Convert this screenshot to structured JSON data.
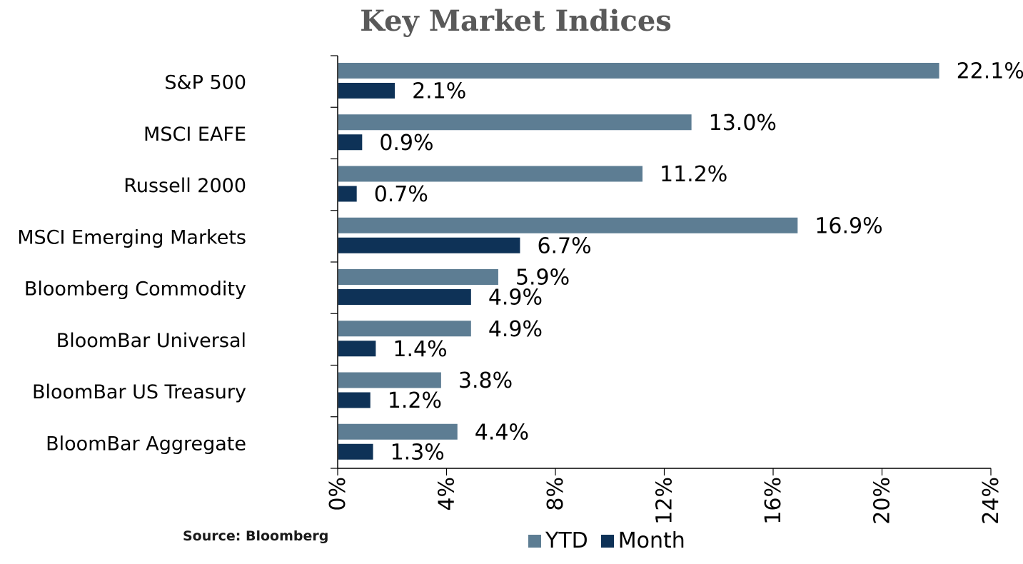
{
  "chart_data": {
    "type": "bar",
    "orientation": "horizontal",
    "title": "Key Market Indices",
    "categories": [
      "S&P 500",
      "MSCI EAFE",
      "Russell 2000",
      "MSCI Emerging Markets",
      "Bloomberg Commodity",
      "BloomBar Universal",
      "BloomBar US Treasury",
      "BloomBar Aggregate"
    ],
    "series": [
      {
        "name": "YTD",
        "color": "#5d7d93",
        "values": [
          22.1,
          13.0,
          11.2,
          16.9,
          5.9,
          4.9,
          3.8,
          4.4
        ],
        "labels": [
          "22.1%",
          "13.0%",
          "11.2%",
          "16.9%",
          "5.9%",
          "4.9%",
          "3.8%",
          "4.4%"
        ]
      },
      {
        "name": "Month",
        "color": "#0e3257",
        "values": [
          2.1,
          0.9,
          0.7,
          6.7,
          4.9,
          1.4,
          1.2,
          1.3
        ],
        "labels": [
          "2.1%",
          "0.9%",
          "0.7%",
          "6.7%",
          "4.9%",
          "1.4%",
          "1.2%",
          "1.3%"
        ]
      }
    ],
    "xlim": [
      0,
      24
    ],
    "xticks": [
      {
        "value": 0,
        "label": "0%"
      },
      {
        "value": 4,
        "label": "4%"
      },
      {
        "value": 8,
        "label": "8%"
      },
      {
        "value": 12,
        "label": "12%"
      },
      {
        "value": 16,
        "label": "16%"
      },
      {
        "value": 20,
        "label": "20%"
      },
      {
        "value": 24,
        "label": "24%"
      }
    ],
    "grid": false,
    "legend_position": "bottom"
  },
  "source": "Source: Bloomberg"
}
